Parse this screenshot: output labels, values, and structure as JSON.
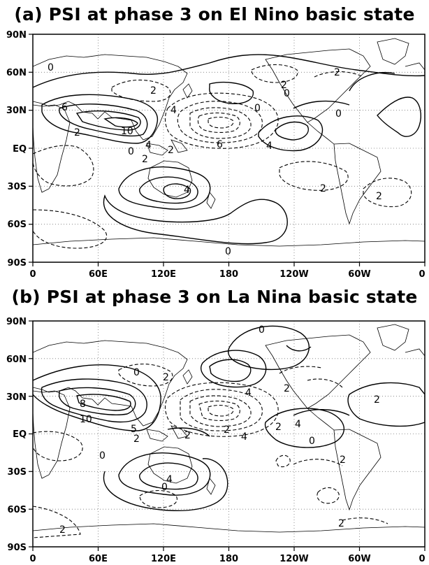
{
  "panels": [
    {
      "title": "(a) PSI at phase 3 on El Nino basic state",
      "y_ticks": [
        "90N",
        "60N",
        "30N",
        "EQ",
        "30S",
        "60S",
        "90S"
      ],
      "x_ticks": [
        "0",
        "60E",
        "120E",
        "180",
        "120W",
        "60W",
        "0"
      ],
      "contour_labels": [
        "0",
        "2",
        "2",
        "0",
        "6",
        "2",
        "10",
        "4",
        "0",
        "2",
        "2",
        "4",
        "0",
        "6",
        "4",
        "0",
        "2",
        "4",
        "2",
        "2",
        "0"
      ]
    },
    {
      "title": "(b) PSI at phase 3 on La Nina basic state",
      "y_ticks": [
        "90N",
        "60N",
        "30N",
        "EQ",
        "30S",
        "60S",
        "90S"
      ],
      "x_ticks": [
        "0",
        "60E",
        "120E",
        "180",
        "120W",
        "60W",
        "0"
      ],
      "contour_labels": [
        "0",
        "0",
        "2",
        "8",
        "10",
        "5",
        "2",
        "0",
        "2",
        "4",
        "2",
        "2",
        "4",
        "2",
        "4",
        "0",
        "2",
        "2",
        "4",
        "0",
        "2",
        "2"
      ]
    }
  ],
  "map_style": {
    "contour_color": "#000000",
    "coast_color": "#000000",
    "grid_color": "#777777",
    "positive_contours": "solid",
    "negative_contours": "dashed"
  }
}
